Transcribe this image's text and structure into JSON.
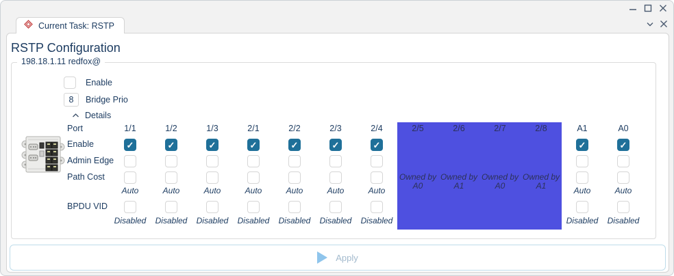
{
  "window": {
    "titlebar": {
      "minimize_icon": "minimize",
      "maximize_icon": "maximize",
      "close_icon": "close"
    },
    "tabstrip": {
      "tab_label": "Current Task: RSTP",
      "tab_icon": "red-diamond-logo",
      "collapse_icon": "chevron-down",
      "close_icon": "close"
    }
  },
  "page": {
    "title": "RSTP Configuration",
    "device_group": "198.18.1.11 redfox@"
  },
  "settings": {
    "enable": {
      "label": "Enable",
      "checked": false
    },
    "bridge_prio": {
      "label": "Bridge Prio",
      "value": "8"
    },
    "details": {
      "label": "Details",
      "expanded": true
    }
  },
  "port_table": {
    "row_labels": [
      "Port",
      "Enable",
      "Admin Edge",
      "Path Cost",
      "BPDU VID"
    ],
    "columns": [
      {
        "port": "1/1",
        "enable": true,
        "admin_edge": false,
        "path_cost_checked": false,
        "path_cost": "Auto",
        "bpdu_checked": false,
        "bpdu_vid": "Disabled"
      },
      {
        "port": "1/2",
        "enable": true,
        "admin_edge": false,
        "path_cost_checked": false,
        "path_cost": "Auto",
        "bpdu_checked": false,
        "bpdu_vid": "Disabled"
      },
      {
        "port": "1/3",
        "enable": true,
        "admin_edge": false,
        "path_cost_checked": false,
        "path_cost": "Auto",
        "bpdu_checked": false,
        "bpdu_vid": "Disabled"
      },
      {
        "port": "2/1",
        "enable": true,
        "admin_edge": false,
        "path_cost_checked": false,
        "path_cost": "Auto",
        "bpdu_checked": false,
        "bpdu_vid": "Disabled"
      },
      {
        "port": "2/2",
        "enable": true,
        "admin_edge": false,
        "path_cost_checked": false,
        "path_cost": "Auto",
        "bpdu_checked": false,
        "bpdu_vid": "Disabled"
      },
      {
        "port": "2/3",
        "enable": true,
        "admin_edge": false,
        "path_cost_checked": false,
        "path_cost": "Auto",
        "bpdu_checked": false,
        "bpdu_vid": "Disabled"
      },
      {
        "port": "2/4",
        "enable": true,
        "admin_edge": false,
        "path_cost_checked": false,
        "path_cost": "Auto",
        "bpdu_checked": false,
        "bpdu_vid": "Disabled"
      },
      {
        "port": "A1",
        "enable": true,
        "admin_edge": false,
        "path_cost_checked": false,
        "path_cost": "Auto",
        "bpdu_checked": false,
        "bpdu_vid": "Disabled"
      },
      {
        "port": "A0",
        "enable": true,
        "admin_edge": false,
        "path_cost_checked": false,
        "path_cost": "Auto",
        "bpdu_checked": false,
        "bpdu_vid": "Disabled"
      }
    ],
    "reserved": {
      "owned_text": "Owned by",
      "columns": [
        {
          "port": "2/5",
          "owner": "A0"
        },
        {
          "port": "2/6",
          "owner": "A1"
        },
        {
          "port": "2/7",
          "owner": "A0"
        },
        {
          "port": "2/8",
          "owner": "A1"
        }
      ]
    }
  },
  "footer": {
    "apply_label": "Apply"
  },
  "colors": {
    "text_navy": "#1d3c61",
    "checkbox_checked": "#1f7099",
    "reserved_overlay": "#4e50e0",
    "apply_border": "#bedcea",
    "apply_triangle": "#8fc5ec",
    "apply_text": "#a3bacd"
  }
}
